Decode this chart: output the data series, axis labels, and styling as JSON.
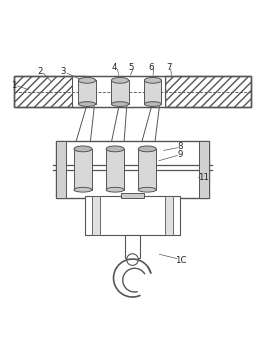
{
  "bg_color": "#ffffff",
  "line_color": "#555555",
  "fig_width": 2.65,
  "fig_height": 3.61,
  "dpi": 100
}
